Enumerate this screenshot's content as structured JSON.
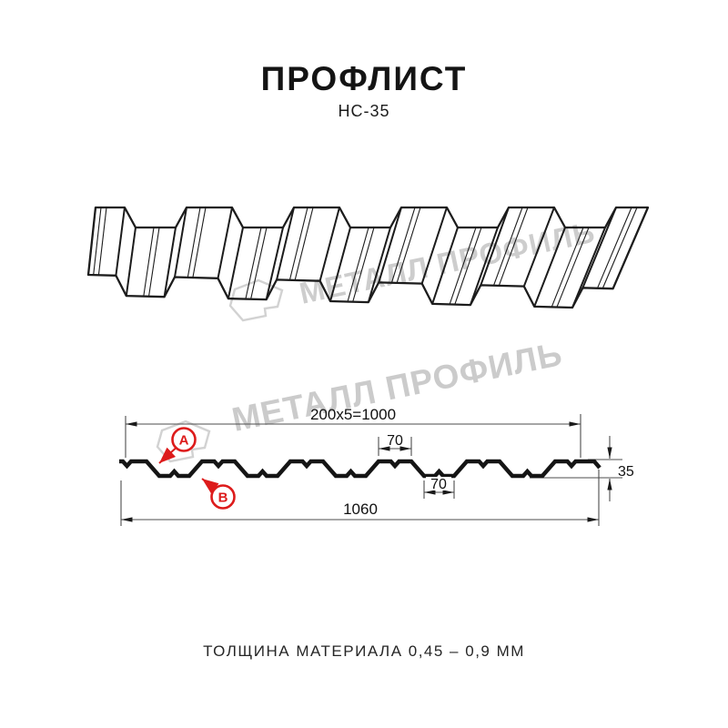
{
  "title": "ПРОФЛИСТ",
  "subtitle": "НС-35",
  "footer": "ТОЛЩИНА МАТЕРИАЛА 0,45 – 0,9 ММ",
  "watermark": {
    "brand": "МЕТАЛЛ ПРОФИЛЬ",
    "logo_icon": "hexagon-brand-logo",
    "color": "#cdcdcd"
  },
  "section": {
    "dims": {
      "top_width": "200x5=1000",
      "crest_width": "70",
      "valley_width": "70",
      "height": "35",
      "total_width": "1060"
    },
    "labels": {
      "a": "А",
      "b": "В"
    },
    "accent_color": "#dd1b1b",
    "line_color": "#1a1a1a"
  }
}
